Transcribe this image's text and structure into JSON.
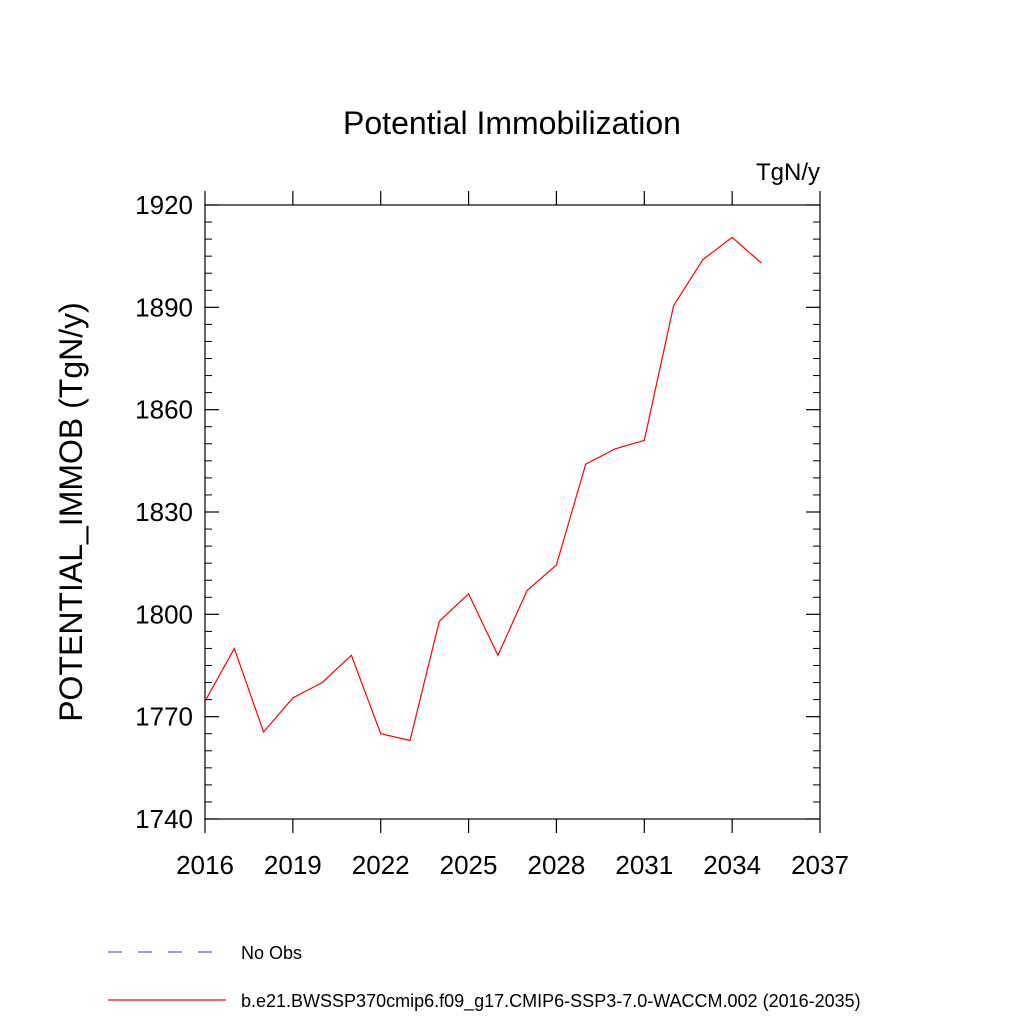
{
  "chart_data": {
    "type": "line",
    "title": "Potential Immobilization",
    "units_label": "TgN/y",
    "ylabel": "POTENTIAL_IMMOB  (TgN/y)",
    "xlabel": "",
    "xlim": [
      2016,
      2037
    ],
    "ylim": [
      1740,
      1920
    ],
    "x_ticks": [
      2016,
      2019,
      2022,
      2025,
      2028,
      2031,
      2034,
      2037
    ],
    "y_ticks": [
      1740,
      1770,
      1800,
      1830,
      1860,
      1890,
      1920
    ],
    "grid": false,
    "legend_position": "bottom",
    "legend": [
      {
        "label": "No Obs",
        "style": "dashed",
        "color": "#6a5acd"
      },
      {
        "label": "b.e21.BWSSP370cmip6.f09_g17.CMIP6-SSP3-7.0-WACCM.002 (2016-2035)",
        "style": "solid",
        "color": "#ff0000"
      }
    ],
    "series": [
      {
        "color": "#ff0000",
        "x": [
          2016,
          2017,
          2018,
          2019,
          2020,
          2021,
          2022,
          2023,
          2024,
          2025,
          2026,
          2027,
          2028,
          2029,
          2030,
          2031,
          2032,
          2033,
          2034,
          2035
        ],
        "values": [
          1774.5,
          1790,
          1765.5,
          1775.5,
          1780,
          1788,
          1765,
          1763,
          1798,
          1806,
          1788,
          1807,
          1814.5,
          1844,
          1848.5,
          1851,
          1890.5,
          1904,
          1910.5,
          1903
        ]
      }
    ]
  }
}
